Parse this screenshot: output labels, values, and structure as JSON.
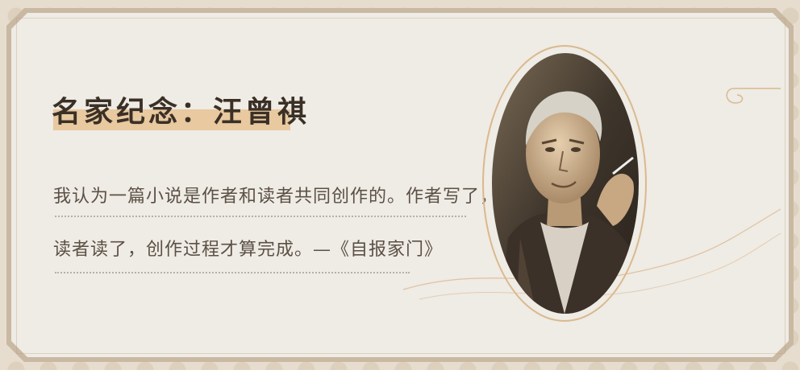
{
  "title": "名家纪念：汪曾祺",
  "quote": {
    "line1": "我认为一篇小说是作者和读者共同创作的。作者写了，",
    "line2": "读者读了，创作过程才算完成。—《自报家门》"
  },
  "portrait": {
    "icon": "portrait-photo"
  },
  "colors": {
    "frame": "#c9b9a2",
    "paper": "#efebe5",
    "highlight": "#e8c9a0",
    "text": "#3a3026"
  }
}
